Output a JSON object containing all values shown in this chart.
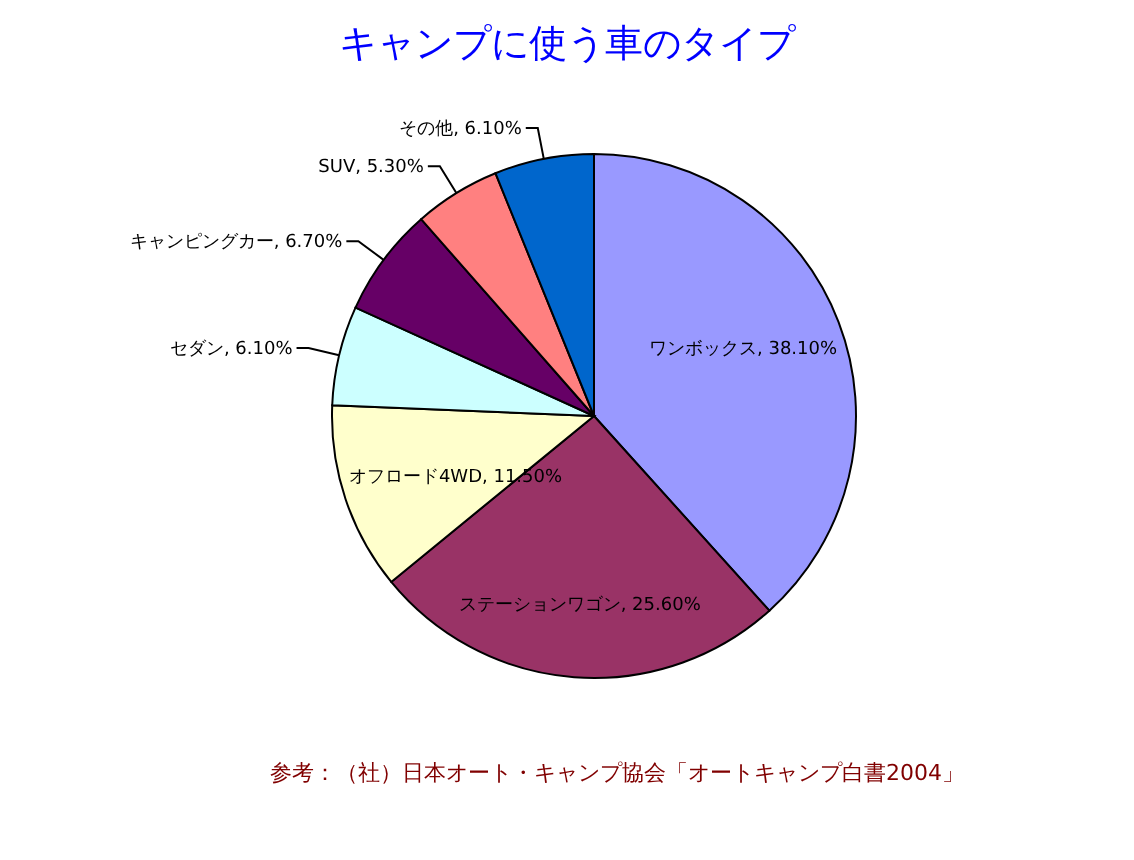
{
  "chart_data": {
    "type": "pie",
    "title": "キャンプに使う車のタイプ",
    "categories": [
      "ワンボックス",
      "ステーションワゴン",
      "オフロード4WD",
      "セダン",
      "キャンピングカー",
      "SUV",
      "その他"
    ],
    "values": [
      38.1,
      25.6,
      11.5,
      6.1,
      6.7,
      5.3,
      6.1
    ],
    "value_labels": [
      "38.10%",
      "25.60%",
      "11.50%",
      "6.10%",
      "6.70%",
      "5.30%",
      "6.10%"
    ],
    "colors": [
      "#9999ff",
      "#993366",
      "#ffffcc",
      "#ccffff",
      "#660066",
      "#ff8080",
      "#0066cc"
    ],
    "annotations": [
      "参考：（社）日本オート・キャンプ協会「オートキャンプ白書2004」"
    ]
  }
}
